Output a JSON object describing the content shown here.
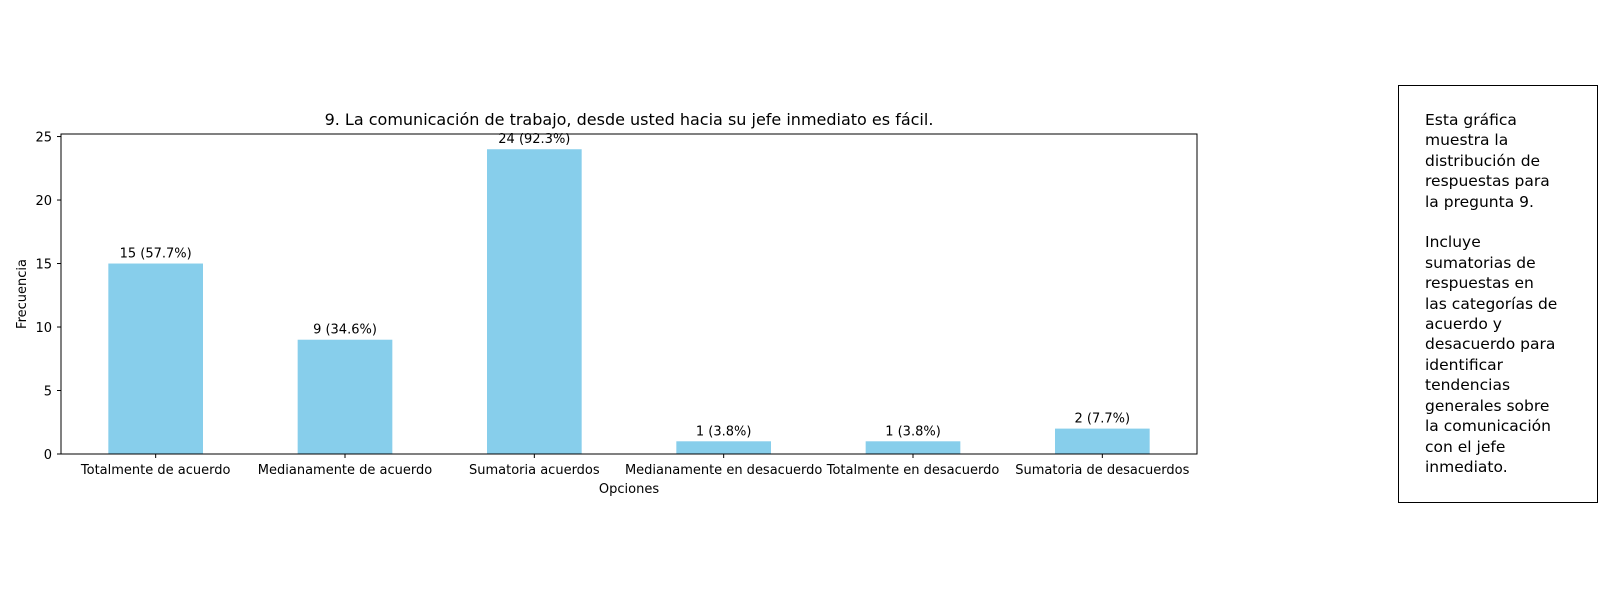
{
  "chart_data": {
    "type": "bar",
    "title": "9. La comunicación de trabajo, desde usted hacia su jefe inmediato es fácil.",
    "xlabel": "Opciones",
    "ylabel": "Frecuencia",
    "categories": [
      "Totalmente de acuerdo",
      "Medianamente de acuerdo",
      "Sumatoria acuerdos",
      "Medianamente en desacuerdo",
      "Totalmente en desacuerdo",
      "Sumatoria de desacuerdos"
    ],
    "values": [
      15,
      9,
      24,
      1,
      1,
      2
    ],
    "data_labels": [
      "15 (57.7%)",
      "9 (34.6%)",
      "24 (92.3%)",
      "1 (3.8%)",
      "1 (3.8%)",
      "2 (7.7%)"
    ],
    "ylim": [
      0,
      25.2
    ],
    "yticks": [
      0,
      5,
      10,
      15,
      20,
      25
    ],
    "bar_color": "#87ceeb",
    "grid": false
  },
  "note": {
    "text": "Esta gráfica\nmuestra la\ndistribución de\nrespuestas para\nla pregunta 9.\n\nIncluye\nsumatorias de\nrespuestas en\nlas categorías de\nacuerdo y\ndesacuerdo para\nidentificar\ntendencias\ngenerales sobre\nla comunicación\ncon el jefe\ninmediato."
  }
}
